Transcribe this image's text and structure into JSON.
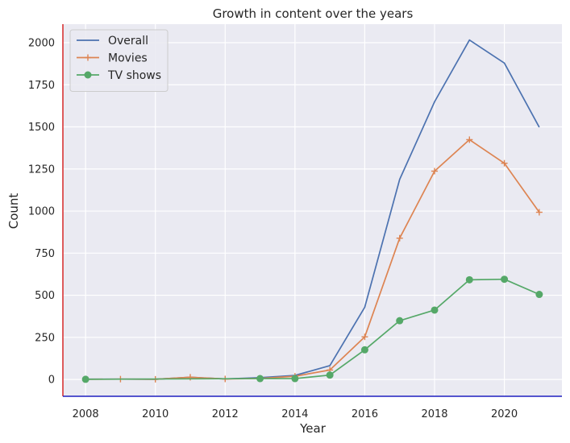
{
  "chart_data": {
    "type": "line",
    "title": "Growth in content over the years",
    "xlabel": "Year",
    "ylabel": "Count",
    "xlim": [
      2007.35,
      2021.65
    ],
    "ylim": [
      -100,
      2110
    ],
    "xticks": [
      2008,
      2010,
      2012,
      2014,
      2016,
      2018,
      2020
    ],
    "yticks": [
      0,
      250,
      500,
      750,
      1000,
      1250,
      1500,
      1750,
      2000
    ],
    "grid": true,
    "legend_position": "top-left",
    "background_color": "#eaeaf2",
    "left_spine_color": "#d62728",
    "bottom_spine_color": "#1f1fbf",
    "series": [
      {
        "name": "Overall",
        "color": "#4c72b0",
        "marker": "none",
        "x": [
          2008,
          2009,
          2010,
          2011,
          2012,
          2013,
          2014,
          2015,
          2016,
          2017,
          2018,
          2019,
          2020,
          2021
        ],
        "y": [
          2,
          2,
          1,
          13,
          3,
          11,
          24,
          82,
          429,
          1188,
          1649,
          2016,
          1879,
          1498
        ]
      },
      {
        "name": "Movies",
        "color": "#dd8452",
        "marker": "plus",
        "x": [
          2008,
          2009,
          2010,
          2011,
          2012,
          2013,
          2014,
          2015,
          2016,
          2017,
          2018,
          2019,
          2020,
          2021
        ],
        "y": [
          1,
          2,
          1,
          13,
          3,
          6,
          19,
          56,
          253,
          839,
          1237,
          1424,
          1284,
          993
        ]
      },
      {
        "name": "TV shows",
        "color": "#55a868",
        "marker": "circle",
        "x": [
          2008,
          2013,
          2014,
          2015,
          2016,
          2017,
          2018,
          2019,
          2020,
          2021
        ],
        "y": [
          1,
          5,
          5,
          26,
          176,
          349,
          412,
          592,
          595,
          505
        ]
      }
    ]
  }
}
